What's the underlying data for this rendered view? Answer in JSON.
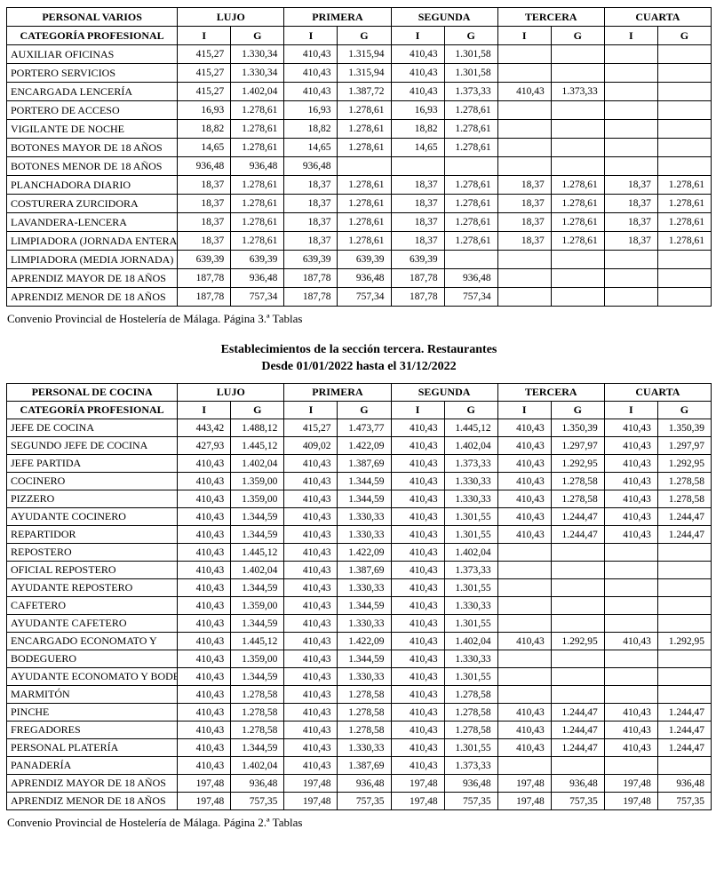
{
  "heading": {
    "line1": "Establecimientos de la sección tercera. Restaurantes",
    "line2": "Desde 01/01/2022 hasta el 31/12/2022"
  },
  "column_groups": [
    "LUJO",
    "PRIMERA",
    "SEGUNDA",
    "TERCERA",
    "CUARTA"
  ],
  "sub_columns": [
    "I",
    "G"
  ],
  "tables": [
    {
      "id": "personal-varios",
      "title": "PERSONAL VARIOS",
      "category_header": "CATEGORÍA PROFESIONAL",
      "footer": "Convenio Provincial de Hostelería de Málaga. Página 3.ª Tablas",
      "rows": [
        [
          "AUXILIAR OFICINAS",
          "415,27",
          "1.330,34",
          "410,43",
          "1.315,94",
          "410,43",
          "1.301,58",
          "",
          "",
          "",
          ""
        ],
        [
          "PORTERO SERVICIOS",
          "415,27",
          "1.330,34",
          "410,43",
          "1.315,94",
          "410,43",
          "1.301,58",
          "",
          "",
          "",
          ""
        ],
        [
          "ENCARGADA LENCERÍA",
          "415,27",
          "1.402,04",
          "410,43",
          "1.387,72",
          "410,43",
          "1.373,33",
          "410,43",
          "1.373,33",
          "",
          ""
        ],
        [
          "PORTERO DE ACCESO",
          "16,93",
          "1.278,61",
          "16,93",
          "1.278,61",
          "16,93",
          "1.278,61",
          "",
          "",
          "",
          ""
        ],
        [
          "VIGILANTE DE NOCHE",
          "18,82",
          "1.278,61",
          "18,82",
          "1.278,61",
          "18,82",
          "1.278,61",
          "",
          "",
          "",
          ""
        ],
        [
          "BOTONES MAYOR DE 18 AÑOS",
          "14,65",
          "1.278,61",
          "14,65",
          "1.278,61",
          "14,65",
          "1.278,61",
          "",
          "",
          "",
          ""
        ],
        [
          "BOTONES MENOR DE 18 AÑOS",
          "936,48",
          "936,48",
          "936,48",
          "",
          "",
          "",
          "",
          "",
          "",
          ""
        ],
        [
          "PLANCHADORA DIARIO",
          "18,37",
          "1.278,61",
          "18,37",
          "1.278,61",
          "18,37",
          "1.278,61",
          "18,37",
          "1.278,61",
          "18,37",
          "1.278,61"
        ],
        [
          "COSTURERA ZURCIDORA",
          "18,37",
          "1.278,61",
          "18,37",
          "1.278,61",
          "18,37",
          "1.278,61",
          "18,37",
          "1.278,61",
          "18,37",
          "1.278,61"
        ],
        [
          "LAVANDERA-LENCERA",
          "18,37",
          "1.278,61",
          "18,37",
          "1.278,61",
          "18,37",
          "1.278,61",
          "18,37",
          "1.278,61",
          "18,37",
          "1.278,61"
        ],
        [
          "LIMPIADORA (JORNADA ENTERA)",
          "18,37",
          "1.278,61",
          "18,37",
          "1.278,61",
          "18,37",
          "1.278,61",
          "18,37",
          "1.278,61",
          "18,37",
          "1.278,61"
        ],
        [
          "LIMPIADORA (MEDIA JORNADA)",
          "639,39",
          "639,39",
          "639,39",
          "639,39",
          "639,39",
          "",
          "",
          "",
          "",
          ""
        ],
        [
          "APRENDIZ MAYOR DE 18 AÑOS",
          "187,78",
          "936,48",
          "187,78",
          "936,48",
          "187,78",
          "936,48",
          "",
          "",
          "",
          ""
        ],
        [
          "APRENDIZ MENOR DE 18 AÑOS",
          "187,78",
          "757,34",
          "187,78",
          "757,34",
          "187,78",
          "757,34",
          "",
          "",
          "",
          ""
        ]
      ]
    },
    {
      "id": "personal-de-cocina",
      "title": "PERSONAL DE COCINA",
      "category_header": "CATEGORÍA PROFESIONAL",
      "footer": "Convenio Provincial de Hostelería de Málaga. Página 2.ª Tablas",
      "rows": [
        [
          "JEFE DE COCINA",
          "443,42",
          "1.488,12",
          "415,27",
          "1.473,77",
          "410,43",
          "1.445,12",
          "410,43",
          "1.350,39",
          "410,43",
          "1.350,39"
        ],
        [
          "SEGUNDO JEFE DE COCINA",
          "427,93",
          "1.445,12",
          "409,02",
          "1.422,09",
          "410,43",
          "1.402,04",
          "410,43",
          "1.297,97",
          "410,43",
          "1.297,97"
        ],
        [
          "JEFE PARTIDA",
          "410,43",
          "1.402,04",
          "410,43",
          "1.387,69",
          "410,43",
          "1.373,33",
          "410,43",
          "1.292,95",
          "410,43",
          "1.292,95"
        ],
        [
          "COCINERO",
          "410,43",
          "1.359,00",
          "410,43",
          "1.344,59",
          "410,43",
          "1.330,33",
          "410,43",
          "1.278,58",
          "410,43",
          "1.278,58"
        ],
        [
          "PIZZERO",
          "410,43",
          "1.359,00",
          "410,43",
          "1.344,59",
          "410,43",
          "1.330,33",
          "410,43",
          "1.278,58",
          "410,43",
          "1.278,58"
        ],
        [
          "AYUDANTE COCINERO",
          "410,43",
          "1.344,59",
          "410,43",
          "1.330,33",
          "410,43",
          "1.301,55",
          "410,43",
          "1.244,47",
          "410,43",
          "1.244,47"
        ],
        [
          "REPARTIDOR",
          "410,43",
          "1.344,59",
          "410,43",
          "1.330,33",
          "410,43",
          "1.301,55",
          "410,43",
          "1.244,47",
          "410,43",
          "1.244,47"
        ],
        [
          "REPOSTERO",
          "410,43",
          "1.445,12",
          "410,43",
          "1.422,09",
          "410,43",
          "1.402,04",
          "",
          "",
          "",
          ""
        ],
        [
          "OFICIAL REPOSTERO",
          "410,43",
          "1.402,04",
          "410,43",
          "1.387,69",
          "410,43",
          "1.373,33",
          "",
          "",
          "",
          ""
        ],
        [
          "AYUDANTE REPOSTERO",
          "410,43",
          "1.344,59",
          "410,43",
          "1.330,33",
          "410,43",
          "1.301,55",
          "",
          "",
          "",
          ""
        ],
        [
          "CAFETERO",
          "410,43",
          "1.359,00",
          "410,43",
          "1.344,59",
          "410,43",
          "1.330,33",
          "",
          "",
          "",
          ""
        ],
        [
          "AYUDANTE CAFETERO",
          "410,43",
          "1.344,59",
          "410,43",
          "1.330,33",
          "410,43",
          "1.301,55",
          "",
          "",
          "",
          ""
        ],
        [
          "ENCARGADO ECONOMATO Y",
          "410,43",
          "1.445,12",
          "410,43",
          "1.422,09",
          "410,43",
          "1.402,04",
          "410,43",
          "1.292,95",
          "410,43",
          "1.292,95"
        ],
        [
          "BODEGUERO",
          "410,43",
          "1.359,00",
          "410,43",
          "1.344,59",
          "410,43",
          "1.330,33",
          "",
          "",
          "",
          ""
        ],
        [
          "AYUDANTE ECONOMATO Y BODEGA",
          "410,43",
          "1.344,59",
          "410,43",
          "1.330,33",
          "410,43",
          "1.301,55",
          "",
          "",
          "",
          ""
        ],
        [
          "MARMITÓN",
          "410,43",
          "1.278,58",
          "410,43",
          "1.278,58",
          "410,43",
          "1.278,58",
          "",
          "",
          "",
          ""
        ],
        [
          "PINCHE",
          "410,43",
          "1.278,58",
          "410,43",
          "1.278,58",
          "410,43",
          "1.278,58",
          "410,43",
          "1.244,47",
          "410,43",
          "1.244,47"
        ],
        [
          "FREGADORES",
          "410,43",
          "1.278,58",
          "410,43",
          "1.278,58",
          "410,43",
          "1.278,58",
          "410,43",
          "1.244,47",
          "410,43",
          "1.244,47"
        ],
        [
          "PERSONAL PLATERÍA",
          "410,43",
          "1.344,59",
          "410,43",
          "1.330,33",
          "410,43",
          "1.301,55",
          "410,43",
          "1.244,47",
          "410,43",
          "1.244,47"
        ],
        [
          "PANADERÍA",
          "410,43",
          "1.402,04",
          "410,43",
          "1.387,69",
          "410,43",
          "1.373,33",
          "",
          "",
          "",
          ""
        ],
        [
          "APRENDIZ MAYOR DE 18 AÑOS",
          "197,48",
          "936,48",
          "197,48",
          "936,48",
          "197,48",
          "936,48",
          "197,48",
          "936,48",
          "197,48",
          "936,48"
        ],
        [
          "APRENDIZ MENOR DE 18 AÑOS",
          "197,48",
          "757,35",
          "197,48",
          "757,35",
          "197,48",
          "757,35",
          "197,48",
          "757,35",
          "197,48",
          "757,35"
        ]
      ]
    }
  ]
}
